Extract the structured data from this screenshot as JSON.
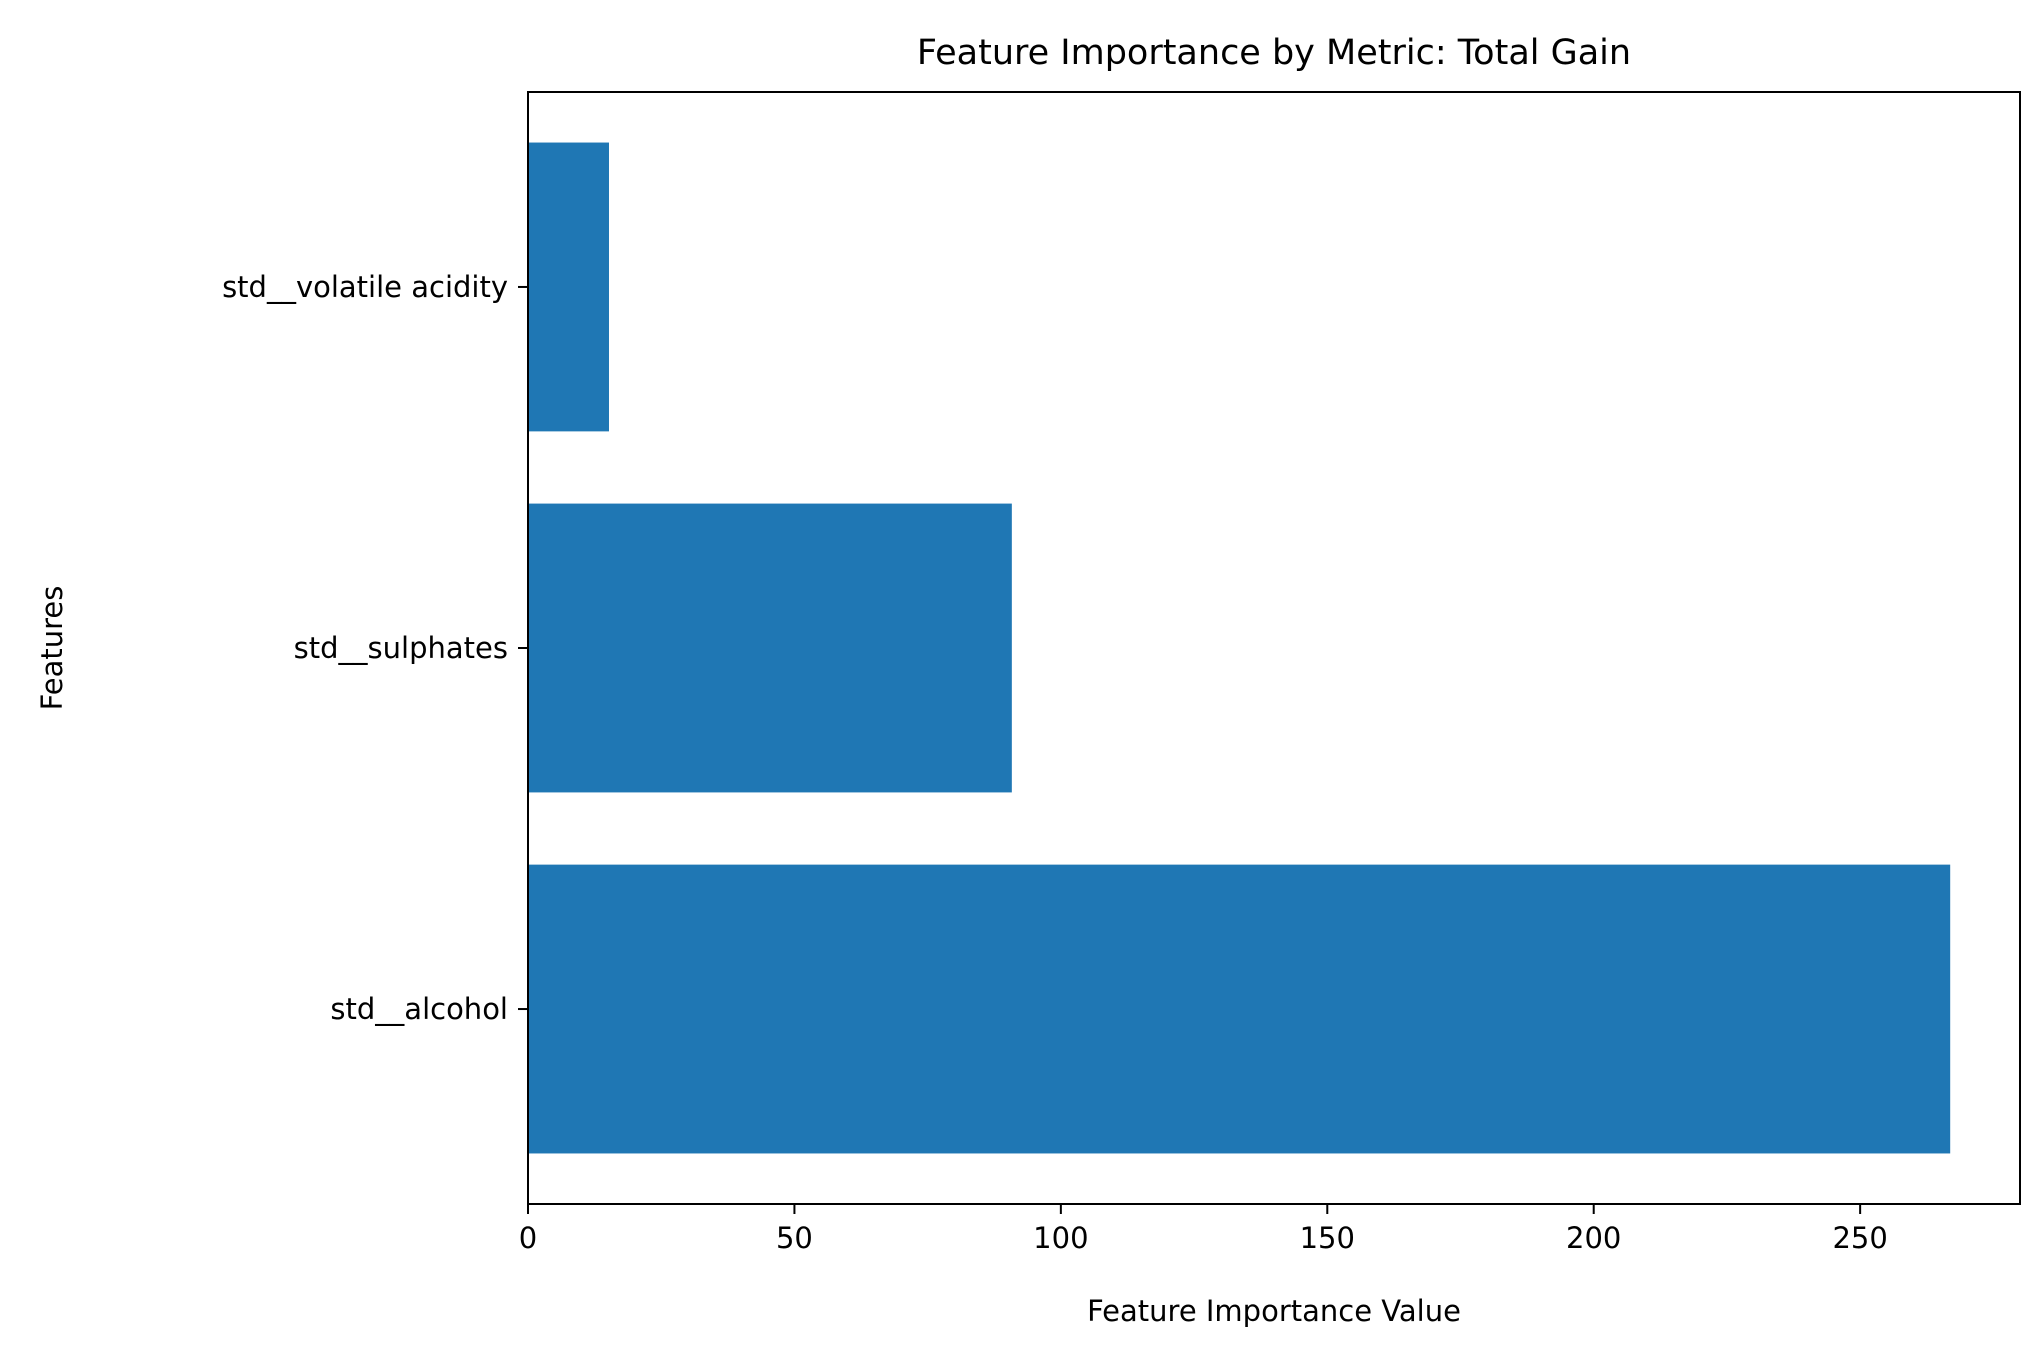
{
  "chart_data": {
    "type": "bar",
    "orientation": "horizontal",
    "title": "Feature Importance by Metric: Total Gain",
    "xlabel": "Feature Importance Value",
    "ylabel": "Features",
    "categories": [
      "std__alcohol",
      "std__sulphates",
      "std__volatile acidity"
    ],
    "values": [
      266.9,
      90.8,
      15.2
    ],
    "xlim": [
      0,
      280
    ],
    "xticks": [
      0,
      50,
      100,
      150,
      200,
      250
    ],
    "grid": false,
    "legend": "none",
    "bar_color": "#1f77b4"
  }
}
